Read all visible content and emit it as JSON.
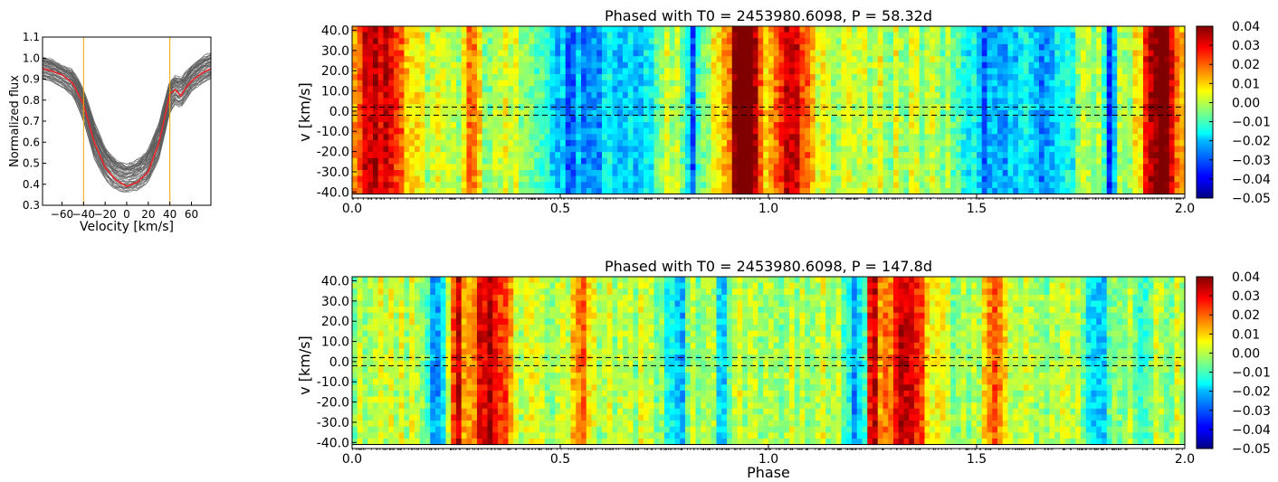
{
  "chart_data": [
    {
      "id": "line_profile",
      "type": "line",
      "title": "",
      "xlabel": "Velocity [km/s]",
      "ylabel": "Normalized flux",
      "xlim": [
        -78,
        78
      ],
      "ylim": [
        0.3,
        1.1
      ],
      "xticks": [
        -60,
        -40,
        -20,
        0,
        20,
        40,
        60
      ],
      "xtick_labels": [
        "−60",
        "−40",
        "−20",
        "0",
        "20",
        "40",
        "60"
      ],
      "yticks": [
        0.3,
        0.4,
        0.5,
        0.6,
        0.7,
        0.8,
        0.9,
        1.0,
        1.1
      ],
      "ytick_labels": [
        "0.3",
        "0.4",
        "0.5",
        "0.6",
        "0.7",
        "0.8",
        "0.9",
        "1.0",
        "1.1"
      ],
      "integration_limits_kms": [
        -40,
        40
      ],
      "series": [
        {
          "style": "individual observed profiles (many thin grey lines)",
          "color": "#5a5a5a",
          "x": [
            -78,
            -70,
            -60,
            -50,
            -40,
            -30,
            -20,
            -10,
            0,
            10,
            20,
            30,
            40,
            45,
            50,
            55,
            60,
            70,
            78
          ],
          "y_min": [
            0.9,
            0.89,
            0.86,
            0.82,
            0.7,
            0.52,
            0.42,
            0.37,
            0.36,
            0.37,
            0.41,
            0.52,
            0.74,
            0.78,
            0.76,
            0.8,
            0.84,
            0.88,
            0.9
          ],
          "y_max": [
            1.01,
            1.0,
            0.97,
            0.95,
            0.86,
            0.7,
            0.58,
            0.52,
            0.5,
            0.52,
            0.57,
            0.7,
            0.9,
            0.92,
            0.91,
            0.94,
            0.97,
            1.01,
            1.03
          ]
        },
        {
          "style": "mean profile",
          "color": "#e8262a",
          "x": [
            -78,
            -70,
            -60,
            -50,
            -40,
            -30,
            -20,
            -10,
            0,
            10,
            20,
            30,
            40,
            45,
            50,
            55,
            60,
            70,
            78
          ],
          "y": [
            0.95,
            0.94,
            0.92,
            0.88,
            0.78,
            0.6,
            0.48,
            0.42,
            0.39,
            0.41,
            0.46,
            0.6,
            0.83,
            0.85,
            0.82,
            0.86,
            0.89,
            0.93,
            0.95
          ]
        }
      ]
    },
    {
      "id": "phased_58",
      "type": "heatmap",
      "title": "Phased with T0 = 2453980.6098, P = 58.32d",
      "xlabel": "",
      "ylabel": "v [km/s]",
      "xlim": [
        0.0,
        2.0
      ],
      "ylim": [
        -43,
        42
      ],
      "xticks": [
        0.0,
        0.5,
        1.0,
        1.5,
        2.0
      ],
      "xtick_labels": [
        "0.0",
        "0.5",
        "1.0",
        "1.5",
        "2.0"
      ],
      "yticks": [
        -40,
        -30,
        -20,
        -10,
        0,
        10,
        20,
        30,
        40
      ],
      "ytick_labels": [
        "-40.0",
        "-30.0",
        "-20.0",
        "-10.0",
        "0.0",
        "10.0",
        "20.0",
        "30.0",
        "40.0"
      ],
      "dashed_lines_v": [
        -2,
        2
      ],
      "colorbar": {
        "colormap": "jet",
        "min": -0.05,
        "max": 0.04,
        "ticks": [
          -0.05,
          -0.04,
          -0.03,
          -0.02,
          -0.01,
          0.0,
          0.01,
          0.02,
          0.03,
          0.04
        ],
        "tick_labels": [
          "−0.05",
          "−0.04",
          "−0.03",
          "−0.02",
          "−0.01",
          "0.00",
          "0.01",
          "0.02",
          "0.03",
          "0.04"
        ]
      },
      "phase_features": [
        {
          "phase": 0.03,
          "width": 0.03,
          "value": 0.028
        },
        {
          "phase": 0.08,
          "width": 0.02,
          "value": 0.02
        },
        {
          "phase": 0.12,
          "width": 0.03,
          "value": 0.015
        },
        {
          "phase": 0.29,
          "width": 0.01,
          "value": 0.02
        },
        {
          "phase": 0.52,
          "width": 0.04,
          "value": -0.025
        },
        {
          "phase": 0.6,
          "width": 0.03,
          "value": -0.018
        },
        {
          "phase": 0.66,
          "width": 0.02,
          "value": -0.02
        },
        {
          "phase": 0.71,
          "width": 0.02,
          "value": -0.02
        },
        {
          "phase": 0.82,
          "width": 0.01,
          "value": -0.03
        },
        {
          "phase": 0.93,
          "width": 0.025,
          "value": 0.035
        },
        {
          "phase": 0.96,
          "width": 0.02,
          "value": 0.03
        },
        {
          "phase": 1.04,
          "width": 0.025,
          "value": 0.028
        },
        {
          "phase": 1.08,
          "width": 0.02,
          "value": 0.02
        },
        {
          "phase": 1.52,
          "width": 0.04,
          "value": -0.025
        },
        {
          "phase": 1.6,
          "width": 0.03,
          "value": -0.02
        },
        {
          "phase": 1.66,
          "width": 0.02,
          "value": -0.02
        },
        {
          "phase": 1.71,
          "width": 0.02,
          "value": -0.02
        },
        {
          "phase": 1.82,
          "width": 0.01,
          "value": -0.03
        },
        {
          "phase": 1.93,
          "width": 0.025,
          "value": 0.033
        },
        {
          "phase": 1.96,
          "width": 0.02,
          "value": 0.028
        }
      ]
    },
    {
      "id": "phased_147",
      "type": "heatmap",
      "title": "Phased with T0 = 2453980.6098, P = 147.8d",
      "xlabel": "Phase",
      "ylabel": "v [km/s]",
      "xlim": [
        0.0,
        2.0
      ],
      "ylim": [
        -43,
        42
      ],
      "xticks": [
        0.0,
        0.5,
        1.0,
        1.5,
        2.0
      ],
      "xtick_labels": [
        "0.0",
        "0.5",
        "1.0",
        "1.5",
        "2.0"
      ],
      "yticks": [
        -40,
        -30,
        -20,
        -10,
        0,
        10,
        20,
        30,
        40
      ],
      "ytick_labels": [
        "-40.0",
        "-30.0",
        "-20.0",
        "-10.0",
        "0.0",
        "10.0",
        "20.0",
        "30.0",
        "40.0"
      ],
      "dashed_lines_v": [
        -2,
        2
      ],
      "colorbar": {
        "colormap": "jet",
        "min": -0.05,
        "max": 0.04,
        "ticks": [
          -0.05,
          -0.04,
          -0.03,
          -0.02,
          -0.01,
          0.0,
          0.01,
          0.02,
          0.03,
          0.04
        ],
        "tick_labels": [
          "−0.05",
          "−0.04",
          "−0.03",
          "−0.02",
          "−0.01",
          "0.00",
          "0.01",
          "0.02",
          "0.03",
          "0.04"
        ]
      },
      "phase_features": [
        {
          "phase": 0.2,
          "width": 0.02,
          "value": -0.025
        },
        {
          "phase": 0.25,
          "width": 0.01,
          "value": 0.035
        },
        {
          "phase": 0.33,
          "width": 0.035,
          "value": 0.035
        },
        {
          "phase": 0.55,
          "width": 0.02,
          "value": 0.02
        },
        {
          "phase": 0.78,
          "width": 0.02,
          "value": -0.025
        },
        {
          "phase": 0.89,
          "width": 0.01,
          "value": -0.02
        },
        {
          "phase": 1.21,
          "width": 0.02,
          "value": -0.025
        },
        {
          "phase": 1.25,
          "width": 0.01,
          "value": 0.035
        },
        {
          "phase": 1.33,
          "width": 0.035,
          "value": 0.035
        },
        {
          "phase": 1.55,
          "width": 0.02,
          "value": 0.022
        },
        {
          "phase": 1.79,
          "width": 0.02,
          "value": -0.025
        },
        {
          "phase": 1.9,
          "width": 0.01,
          "value": -0.02
        }
      ]
    }
  ]
}
